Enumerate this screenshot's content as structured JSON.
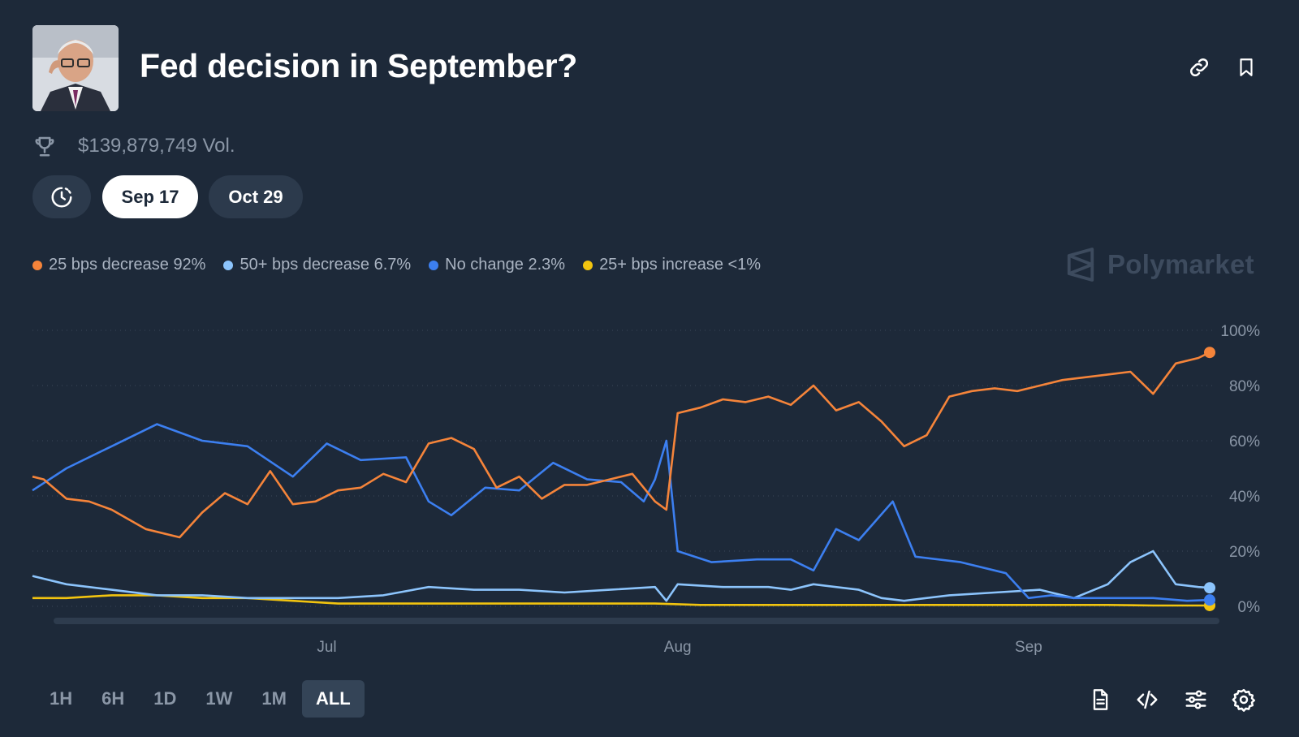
{
  "market": {
    "title": "Fed decision in September?",
    "volume": "$139,879,749 Vol."
  },
  "date_tabs": [
    {
      "label": "Sep 17",
      "active": true
    },
    {
      "label": "Oct 29",
      "active": false
    }
  ],
  "legend": [
    {
      "label": "25 bps decrease 92%",
      "color": "#f5843a"
    },
    {
      "label": "50+ bps decrease 6.7%",
      "color": "#8cc4fc"
    },
    {
      "label": "No change 2.3%",
      "color": "#3c7ff0"
    },
    {
      "label": "25+ bps increase <1%",
      "color": "#f2c40f"
    }
  ],
  "watermark": "Polymarket",
  "time_ranges": [
    {
      "label": "1H",
      "active": false
    },
    {
      "label": "6H",
      "active": false
    },
    {
      "label": "1D",
      "active": false
    },
    {
      "label": "1W",
      "active": false
    },
    {
      "label": "1M",
      "active": false
    },
    {
      "label": "ALL",
      "active": true
    }
  ],
  "icons": {
    "link": "link-icon",
    "bookmark": "bookmark-icon",
    "trophy": "trophy-icon",
    "history": "history-icon",
    "document": "document-icon",
    "embed": "code-icon",
    "filters": "sliders-icon",
    "settings": "gear-icon"
  },
  "chart_data": {
    "type": "line",
    "ylim": [
      0,
      100
    ],
    "y_ticks": [
      "100%",
      "80%",
      "60%",
      "40%",
      "20%",
      "0%"
    ],
    "x_ticks": [
      "Jul",
      "Aug",
      "Sep"
    ],
    "x_range": [
      "2024-06-05",
      "2024-09-17"
    ],
    "grid": true,
    "series": [
      {
        "name": "25 bps decrease",
        "color": "#f5843a",
        "x": [
          "2024-06-05",
          "2024-06-06",
          "2024-06-08",
          "2024-06-10",
          "2024-06-12",
          "2024-06-15",
          "2024-06-18",
          "2024-06-20",
          "2024-06-22",
          "2024-06-24",
          "2024-06-26",
          "2024-06-28",
          "2024-06-30",
          "2024-07-02",
          "2024-07-04",
          "2024-07-06",
          "2024-07-08",
          "2024-07-10",
          "2024-07-12",
          "2024-07-14",
          "2024-07-16",
          "2024-07-18",
          "2024-07-20",
          "2024-07-22",
          "2024-07-24",
          "2024-07-26",
          "2024-07-28",
          "2024-07-30",
          "2024-07-31",
          "2024-08-01",
          "2024-08-03",
          "2024-08-05",
          "2024-08-07",
          "2024-08-09",
          "2024-08-11",
          "2024-08-13",
          "2024-08-15",
          "2024-08-17",
          "2024-08-19",
          "2024-08-21",
          "2024-08-23",
          "2024-08-25",
          "2024-08-27",
          "2024-08-29",
          "2024-08-31",
          "2024-09-02",
          "2024-09-04",
          "2024-09-06",
          "2024-09-08",
          "2024-09-10",
          "2024-09-12",
          "2024-09-14",
          "2024-09-16",
          "2024-09-17"
        ],
        "values": [
          47,
          46,
          39,
          38,
          35,
          28,
          25,
          34,
          41,
          37,
          49,
          37,
          38,
          42,
          43,
          48,
          45,
          59,
          61,
          57,
          43,
          47,
          39,
          44,
          44,
          46,
          48,
          38,
          35,
          70,
          72,
          75,
          74,
          76,
          73,
          80,
          71,
          74,
          67,
          58,
          62,
          76,
          78,
          79,
          78,
          80,
          82,
          83,
          84,
          85,
          77,
          88,
          90,
          92
        ]
      },
      {
        "name": "50+ bps decrease",
        "color": "#8cc4fc",
        "x": [
          "2024-06-05",
          "2024-06-08",
          "2024-06-12",
          "2024-06-16",
          "2024-06-20",
          "2024-06-24",
          "2024-06-28",
          "2024-07-02",
          "2024-07-06",
          "2024-07-10",
          "2024-07-14",
          "2024-07-18",
          "2024-07-22",
          "2024-07-26",
          "2024-07-30",
          "2024-07-31",
          "2024-08-01",
          "2024-08-05",
          "2024-08-09",
          "2024-08-11",
          "2024-08-13",
          "2024-08-17",
          "2024-08-19",
          "2024-08-21",
          "2024-08-25",
          "2024-08-29",
          "2024-09-02",
          "2024-09-05",
          "2024-09-08",
          "2024-09-10",
          "2024-09-12",
          "2024-09-14",
          "2024-09-16",
          "2024-09-17"
        ],
        "values": [
          11,
          8,
          6,
          4,
          4,
          3,
          3,
          3,
          4,
          7,
          6,
          6,
          5,
          6,
          7,
          2,
          8,
          7,
          7,
          6,
          8,
          6,
          3,
          2,
          4,
          5,
          6,
          3,
          8,
          16,
          20,
          8,
          7,
          6.7
        ]
      },
      {
        "name": "No change",
        "color": "#3c7ff0",
        "x": [
          "2024-06-05",
          "2024-06-08",
          "2024-06-12",
          "2024-06-16",
          "2024-06-20",
          "2024-06-24",
          "2024-06-28",
          "2024-07-01",
          "2024-07-04",
          "2024-07-08",
          "2024-07-10",
          "2024-07-12",
          "2024-07-15",
          "2024-07-18",
          "2024-07-21",
          "2024-07-24",
          "2024-07-27",
          "2024-07-29",
          "2024-07-30",
          "2024-07-31",
          "2024-08-01",
          "2024-08-04",
          "2024-08-08",
          "2024-08-11",
          "2024-08-13",
          "2024-08-15",
          "2024-08-17",
          "2024-08-20",
          "2024-08-22",
          "2024-08-26",
          "2024-08-30",
          "2024-09-01",
          "2024-09-03",
          "2024-09-05",
          "2024-09-08",
          "2024-09-12",
          "2024-09-15",
          "2024-09-17"
        ],
        "values": [
          42,
          50,
          58,
          66,
          60,
          58,
          47,
          59,
          53,
          54,
          38,
          33,
          43,
          42,
          52,
          46,
          45,
          38,
          46,
          60,
          20,
          16,
          17,
          17,
          13,
          28,
          24,
          38,
          18,
          16,
          12,
          3,
          4,
          3,
          3,
          3,
          2,
          2.3
        ]
      },
      {
        "name": "25+ bps increase",
        "color": "#f2c40f",
        "x": [
          "2024-06-05",
          "2024-06-08",
          "2024-06-12",
          "2024-06-16",
          "2024-06-20",
          "2024-06-24",
          "2024-06-28",
          "2024-07-02",
          "2024-07-06",
          "2024-07-10",
          "2024-07-14",
          "2024-07-18",
          "2024-07-22",
          "2024-07-26",
          "2024-07-30",
          "2024-08-03",
          "2024-08-07",
          "2024-08-11",
          "2024-08-15",
          "2024-08-19",
          "2024-08-23",
          "2024-08-27",
          "2024-08-31",
          "2024-09-04",
          "2024-09-08",
          "2024-09-12",
          "2024-09-17"
        ],
        "values": [
          3,
          3,
          4,
          4,
          3,
          3,
          2,
          1,
          1,
          1,
          1,
          1,
          1,
          1,
          1,
          0.5,
          0.5,
          0.5,
          0.5,
          0.5,
          0.5,
          0.5,
          0.5,
          0.5,
          0.5,
          0.3,
          0.3
        ]
      }
    ]
  }
}
